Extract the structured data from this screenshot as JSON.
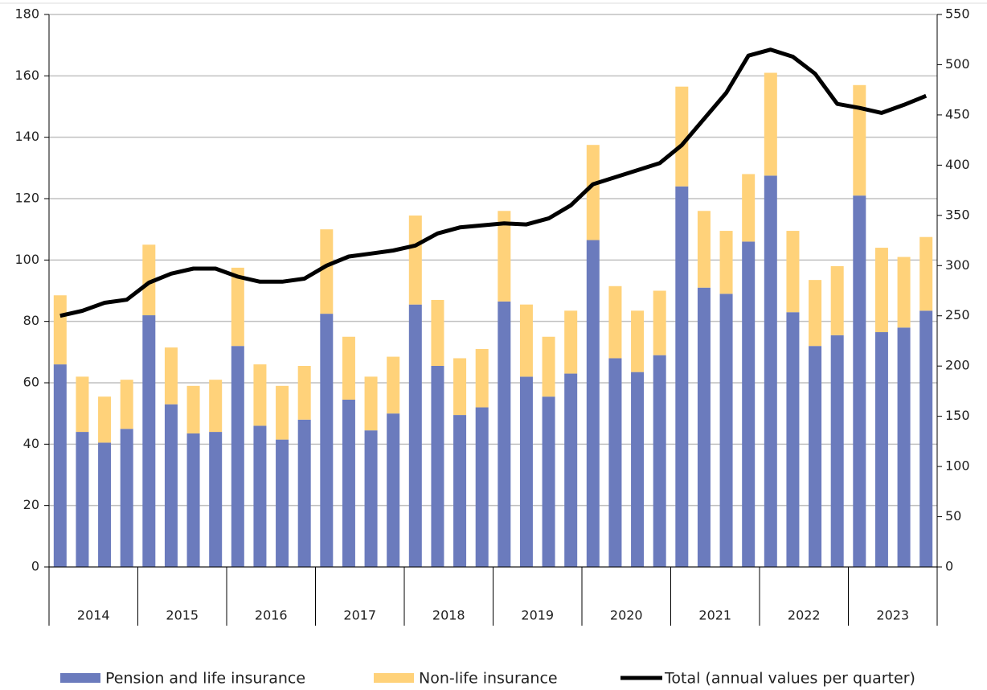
{
  "chart_data": {
    "type": "bar-line",
    "categories": [
      null,
      null,
      null,
      null,
      null,
      null,
      null,
      null,
      null,
      null,
      null,
      null,
      null,
      null,
      null,
      null,
      null,
      null,
      null,
      null,
      null,
      null,
      null,
      null,
      null,
      null,
      null,
      null,
      null,
      null,
      null,
      null,
      null,
      null,
      null,
      null,
      null,
      null,
      null,
      null
    ],
    "groups": [
      "2014",
      "2015",
      "2016",
      "2017",
      "2018",
      "2019",
      "2020",
      "2021",
      "2022",
      "2023"
    ],
    "series": [
      {
        "name": "Pension and life insurance",
        "color": "#6b7bbd",
        "stack": true,
        "values": [
          66,
          44,
          40.5,
          45,
          82,
          53,
          43.5,
          44,
          72,
          46,
          41.5,
          48,
          82.5,
          54.5,
          44.5,
          50,
          85.5,
          65.5,
          49.5,
          52,
          86.5,
          62,
          55.5,
          63,
          106.5,
          68,
          63.5,
          69,
          124,
          91,
          89,
          106,
          127.5,
          83,
          72,
          75.5,
          121,
          76.5,
          78,
          83.5
        ]
      },
      {
        "name": "Non-life insurance",
        "color": "#ffd27a",
        "stack": true,
        "values": [
          22.5,
          18,
          15,
          16,
          23,
          18.5,
          15.5,
          17,
          25.5,
          20,
          17.5,
          17.5,
          27.5,
          20.5,
          17.5,
          18.5,
          29,
          21.5,
          18.5,
          19,
          29.5,
          23.5,
          19.5,
          20.5,
          31,
          23.5,
          20,
          21,
          32.5,
          25,
          20.5,
          22,
          33.5,
          26.5,
          21.5,
          22.5,
          36,
          27.5,
          23,
          24
        ]
      },
      {
        "name": "Total (annual values per quarter)",
        "color": "#000000",
        "axis": "y2",
        "kind": "line",
        "values": [
          250,
          255,
          263,
          266,
          283,
          292,
          297,
          297,
          289,
          284,
          284,
          287,
          300,
          309,
          312,
          315,
          320,
          332,
          338,
          340,
          342,
          341,
          347,
          360,
          381,
          388,
          395,
          402,
          420,
          446,
          472,
          509,
          515,
          508,
          491,
          461,
          457,
          452,
          460,
          469
        ]
      }
    ],
    "ylim": [
      0,
      180
    ],
    "yticks": [
      0,
      20,
      40,
      60,
      80,
      100,
      120,
      140,
      160,
      180
    ],
    "y2lim": [
      0,
      550
    ],
    "y2ticks": [
      0,
      50,
      100,
      150,
      200,
      250,
      300,
      350,
      400,
      450,
      500,
      550
    ],
    "grid": true,
    "legend": "bottom"
  }
}
